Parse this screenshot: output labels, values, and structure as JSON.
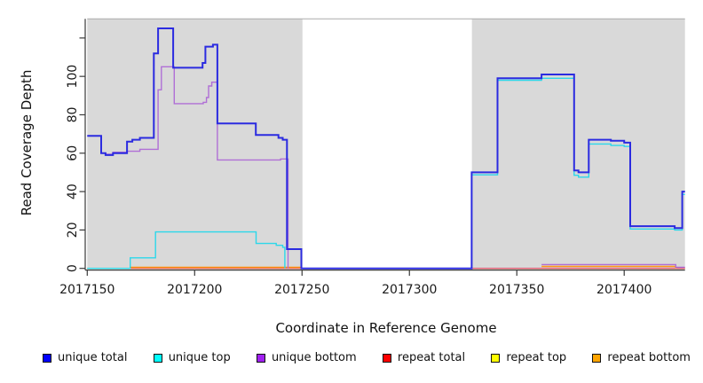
{
  "chart_data": {
    "type": "line",
    "title": "",
    "xlabel": "Coordinate in Reference Genome",
    "ylabel": "Read Coverage Depth",
    "xlim": [
      2017150,
      2017428.3
    ],
    "ylim": [
      0,
      130
    ],
    "grid": false,
    "legend_position": "bottom",
    "x_ticks": [
      {
        "value": 2017150,
        "label": "2017150"
      },
      {
        "value": 2017200,
        "label": "2017200"
      },
      {
        "value": 2017250,
        "label": "2017250"
      },
      {
        "value": 2017300,
        "label": "2017300"
      },
      {
        "value": 2017350,
        "label": "2017350"
      },
      {
        "value": 2017400,
        "label": "2017400"
      }
    ],
    "y_ticks": [
      {
        "value": 0,
        "label": "0"
      },
      {
        "value": 20,
        "label": "20"
      },
      {
        "value": 40,
        "label": "40"
      },
      {
        "value": 60,
        "label": "60"
      },
      {
        "value": 80,
        "label": "80"
      },
      {
        "value": 100,
        "label": "100"
      },
      {
        "value": 120,
        "label": ""
      }
    ],
    "colors": {
      "panel_shading": "#d9d9d9",
      "gap_background": "#ffffff",
      "axis_line": "#3a3a3a",
      "panel_top_border": "#ababab",
      "unique_total_line": "#2b2be0",
      "unique_top_line": "#2cd8ea",
      "unique_bottom_line": "#b06fd6",
      "repeat_total_line": "#d85575",
      "repeat_top_line": "#ffef00",
      "repeat_bottom_line": "#ff9414",
      "overlap_blend_line": "#7cbf7c"
    },
    "shaded_coverage_regions": [
      [
        2017150,
        2017250.2
      ],
      [
        2017329.1,
        2017428.3
      ]
    ],
    "uncovered_gap_region": [
      2017250.2,
      2017329.1
    ],
    "legend": [
      {
        "label": "unique total",
        "color": "#0000ff"
      },
      {
        "label": "unique top",
        "color": "#00ffff"
      },
      {
        "label": "unique bottom",
        "color": "#a020f0"
      },
      {
        "label": "repeat total",
        "color": "#ff0000"
      },
      {
        "label": "repeat top",
        "color": "#ffff00"
      },
      {
        "label": "repeat bottom",
        "color": "#ffa500"
      }
    ],
    "series": [
      {
        "name": "repeat-top",
        "color_key": "repeat_top_line",
        "width": 1.3,
        "segments": [
          [
            [
              2017150,
              0
            ],
            [
              2017249.7,
              0
            ]
          ],
          [
            [
              2017329,
              0
            ],
            [
              2017428.3,
              0
            ]
          ]
        ]
      },
      {
        "name": "repeat-total",
        "color_key": "repeat_total_line",
        "width": 1.3,
        "segments": [
          [
            [
              2017150,
              0
            ],
            [
              2017249.7,
              0
            ]
          ],
          [
            [
              2017329,
              0
            ],
            [
              2017428.3,
              0
            ]
          ]
        ]
      },
      {
        "name": "unique-top-repeat-top-overlap-blend",
        "color_key": "overlap_blend_line",
        "width": 1.4,
        "segments": [
          [
            [
              2017150,
              0
            ],
            [
              2017170,
              0
            ]
          ]
        ]
      },
      {
        "name": "repeat-bottom",
        "color_key": "repeat_bottom_line",
        "width": 1.6,
        "segments": [
          [
            [
              2017170,
              0.5
            ],
            [
              2017249.7,
              0.5
            ]
          ],
          [
            [
              2017361.5,
              1
            ],
            [
              2017424,
              1
            ],
            [
              2017424,
              0
            ]
          ]
        ]
      },
      {
        "name": "unique-bottom",
        "color_key": "unique_bottom_line",
        "width": 1.4,
        "segments": [
          [
            [
              2017150,
              69
            ],
            [
              2017156.5,
              60
            ],
            [
              2017158.5,
              59.5
            ],
            [
              2017162,
              60.5
            ],
            [
              2017168.5,
              61
            ],
            [
              2017174.5,
              62
            ],
            [
              2017181,
              62
            ],
            [
              2017183,
              93
            ],
            [
              2017184.5,
              105
            ],
            [
              2017190.5,
              85.8
            ],
            [
              2017204,
              86.5
            ],
            [
              2017205.5,
              89
            ],
            [
              2017206.5,
              95
            ],
            [
              2017208,
              97
            ],
            [
              2017210.6,
              56.5
            ],
            [
              2017240,
              57
            ],
            [
              2017243.5,
              0
            ]
          ],
          [
            [
              2017361.5,
              2
            ],
            [
              2017424,
              0.6
            ],
            [
              2017428.3,
              0.6
            ]
          ]
        ]
      },
      {
        "name": "unique-top",
        "color_key": "unique_top_line",
        "width": 1.4,
        "segments": [
          [
            [
              2017150,
              0
            ],
            [
              2017170,
              5.5
            ],
            [
              2017181.8,
              19
            ],
            [
              2017228.6,
              13
            ],
            [
              2017238,
              12
            ],
            [
              2017241,
              11
            ],
            [
              2017242,
              0
            ]
          ],
          [
            [
              2017329,
              48.7
            ],
            [
              2017341,
              98
            ],
            [
              2017361.5,
              99
            ],
            [
              2017376.7,
              48.5
            ],
            [
              2017378.7,
              47.5
            ],
            [
              2017383.5,
              64.8
            ],
            [
              2017393.8,
              64
            ],
            [
              2017400,
              63.5
            ],
            [
              2017402.8,
              20.5
            ],
            [
              2017423.5,
              20
            ],
            [
              2017427,
              38.5
            ],
            [
              2017428.3,
              38.5
            ]
          ]
        ]
      },
      {
        "name": "unique-total",
        "color_key": "unique_total_line",
        "width": 2,
        "segments": [
          [
            [
              2017150,
              69
            ],
            [
              2017156.5,
              60
            ],
            [
              2017158.5,
              59
            ],
            [
              2017162,
              60
            ],
            [
              2017168.5,
              66
            ],
            [
              2017171,
              67
            ],
            [
              2017174.5,
              68
            ],
            [
              2017181,
              112
            ],
            [
              2017183,
              125
            ],
            [
              2017190,
              104.5
            ],
            [
              2017203.7,
              107
            ],
            [
              2017205,
              115.5
            ],
            [
              2017208.5,
              116.5
            ],
            [
              2017210.6,
              75.5
            ],
            [
              2017228.5,
              69.5
            ],
            [
              2017239,
              68
            ],
            [
              2017241,
              67
            ],
            [
              2017243,
              10
            ],
            [
              2017249.7,
              0
            ],
            [
              2017329,
              50
            ],
            [
              2017341,
              99
            ],
            [
              2017361.5,
              101
            ],
            [
              2017376.7,
              51
            ],
            [
              2017378.7,
              50
            ],
            [
              2017383.5,
              67
            ],
            [
              2017393.8,
              66.5
            ],
            [
              2017400,
              65.5
            ],
            [
              2017402.8,
              22
            ],
            [
              2017423.5,
              21
            ],
            [
              2017427,
              40
            ],
            [
              2017428.3,
              40
            ]
          ]
        ]
      }
    ]
  }
}
